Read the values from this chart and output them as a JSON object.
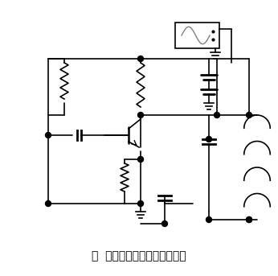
{
  "title": "图  电容三点式正弦波振荡电路",
  "title_fontsize": 10,
  "bg_color": "#ffffff",
  "line_color": "#000000",
  "dot_color": "#000000",
  "figsize": [
    3.46,
    3.43
  ],
  "dpi": 100
}
